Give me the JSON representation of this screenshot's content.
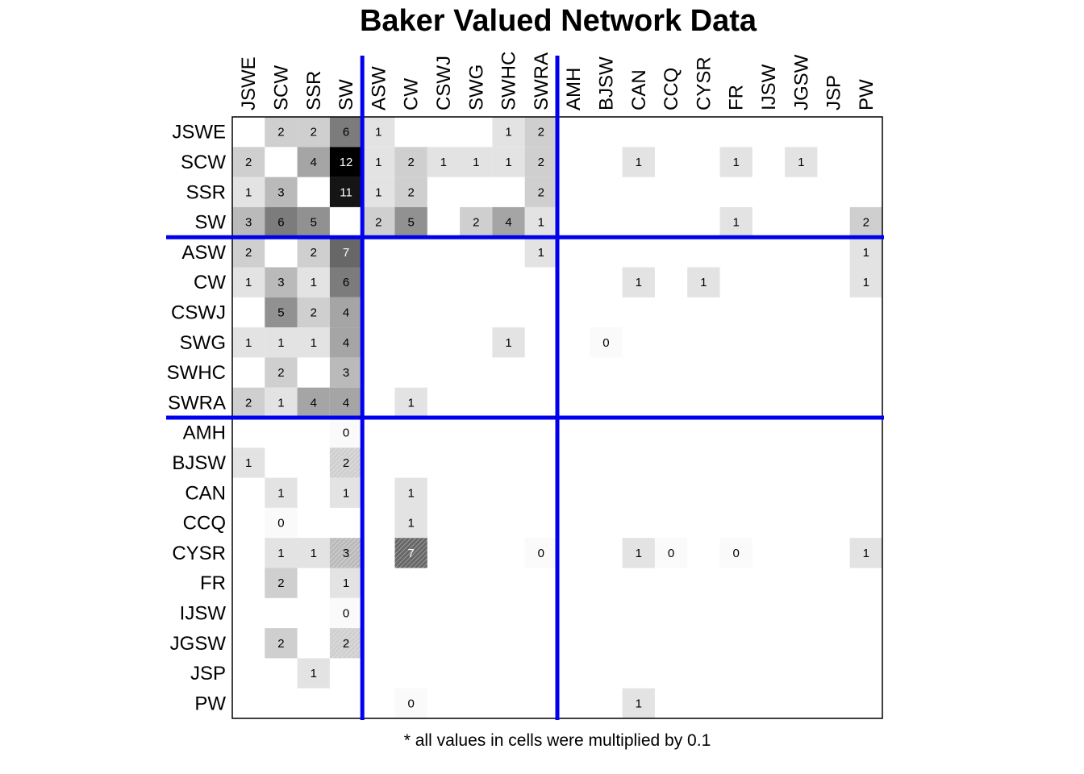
{
  "chart_data": {
    "type": "heatmap",
    "title": "Baker Valued Network Data",
    "note": "* all values in cells were multiplied by 0.1",
    "labels": [
      "JSWE",
      "SCW",
      "SSR",
      "SW",
      "ASW",
      "CW",
      "CSWJ",
      "SWG",
      "SWHC",
      "SWRA",
      "AMH",
      "BJSW",
      "CAN",
      "CCQ",
      "CYSR",
      "FR",
      "IJSW",
      "JGSW",
      "JSP",
      "PW"
    ],
    "group_boundaries_after": [
      4,
      10
    ],
    "max_value": 12,
    "cells": [
      {
        "r": 0,
        "c": 1,
        "v": 2
      },
      {
        "r": 0,
        "c": 2,
        "v": 2
      },
      {
        "r": 0,
        "c": 3,
        "v": 6
      },
      {
        "r": 0,
        "c": 4,
        "v": 1
      },
      {
        "r": 0,
        "c": 8,
        "v": 1
      },
      {
        "r": 0,
        "c": 9,
        "v": 2
      },
      {
        "r": 1,
        "c": 0,
        "v": 2
      },
      {
        "r": 1,
        "c": 2,
        "v": 4
      },
      {
        "r": 1,
        "c": 3,
        "v": 12
      },
      {
        "r": 1,
        "c": 4,
        "v": 1
      },
      {
        "r": 1,
        "c": 5,
        "v": 2
      },
      {
        "r": 1,
        "c": 6,
        "v": 1
      },
      {
        "r": 1,
        "c": 7,
        "v": 1
      },
      {
        "r": 1,
        "c": 8,
        "v": 1
      },
      {
        "r": 1,
        "c": 9,
        "v": 2
      },
      {
        "r": 1,
        "c": 12,
        "v": 1
      },
      {
        "r": 1,
        "c": 15,
        "v": 1
      },
      {
        "r": 1,
        "c": 17,
        "v": 1
      },
      {
        "r": 2,
        "c": 0,
        "v": 1
      },
      {
        "r": 2,
        "c": 1,
        "v": 3
      },
      {
        "r": 2,
        "c": 3,
        "v": 11
      },
      {
        "r": 2,
        "c": 4,
        "v": 1
      },
      {
        "r": 2,
        "c": 5,
        "v": 2
      },
      {
        "r": 2,
        "c": 9,
        "v": 2
      },
      {
        "r": 3,
        "c": 0,
        "v": 3
      },
      {
        "r": 3,
        "c": 1,
        "v": 6
      },
      {
        "r": 3,
        "c": 2,
        "v": 5
      },
      {
        "r": 3,
        "c": 4,
        "v": 2
      },
      {
        "r": 3,
        "c": 5,
        "v": 5
      },
      {
        "r": 3,
        "c": 7,
        "v": 2
      },
      {
        "r": 3,
        "c": 8,
        "v": 4
      },
      {
        "r": 3,
        "c": 9,
        "v": 1
      },
      {
        "r": 3,
        "c": 15,
        "v": 1
      },
      {
        "r": 3,
        "c": 19,
        "v": 2
      },
      {
        "r": 4,
        "c": 0,
        "v": 2
      },
      {
        "r": 4,
        "c": 2,
        "v": 2
      },
      {
        "r": 4,
        "c": 3,
        "v": 7
      },
      {
        "r": 4,
        "c": 9,
        "v": 1
      },
      {
        "r": 4,
        "c": 19,
        "v": 1
      },
      {
        "r": 5,
        "c": 0,
        "v": 1
      },
      {
        "r": 5,
        "c": 1,
        "v": 3
      },
      {
        "r": 5,
        "c": 2,
        "v": 1
      },
      {
        "r": 5,
        "c": 3,
        "v": 6
      },
      {
        "r": 5,
        "c": 12,
        "v": 1
      },
      {
        "r": 5,
        "c": 14,
        "v": 1
      },
      {
        "r": 5,
        "c": 19,
        "v": 1
      },
      {
        "r": 6,
        "c": 1,
        "v": 5
      },
      {
        "r": 6,
        "c": 2,
        "v": 2
      },
      {
        "r": 6,
        "c": 3,
        "v": 4
      },
      {
        "r": 7,
        "c": 0,
        "v": 1
      },
      {
        "r": 7,
        "c": 1,
        "v": 1
      },
      {
        "r": 7,
        "c": 2,
        "v": 1
      },
      {
        "r": 7,
        "c": 3,
        "v": 4
      },
      {
        "r": 7,
        "c": 8,
        "v": 1
      },
      {
        "r": 7,
        "c": 11,
        "v": 0
      },
      {
        "r": 8,
        "c": 1,
        "v": 2
      },
      {
        "r": 8,
        "c": 3,
        "v": 3
      },
      {
        "r": 9,
        "c": 0,
        "v": 2
      },
      {
        "r": 9,
        "c": 1,
        "v": 1
      },
      {
        "r": 9,
        "c": 2,
        "v": 4
      },
      {
        "r": 9,
        "c": 3,
        "v": 4
      },
      {
        "r": 9,
        "c": 5,
        "v": 1
      },
      {
        "r": 10,
        "c": 3,
        "v": 0
      },
      {
        "r": 11,
        "c": 0,
        "v": 1
      },
      {
        "r": 11,
        "c": 3,
        "v": 2,
        "hatched": true
      },
      {
        "r": 12,
        "c": 1,
        "v": 1
      },
      {
        "r": 12,
        "c": 3,
        "v": 1
      },
      {
        "r": 12,
        "c": 5,
        "v": 1
      },
      {
        "r": 13,
        "c": 1,
        "v": 0
      },
      {
        "r": 13,
        "c": 5,
        "v": 1
      },
      {
        "r": 14,
        "c": 1,
        "v": 1
      },
      {
        "r": 14,
        "c": 2,
        "v": 1
      },
      {
        "r": 14,
        "c": 3,
        "v": 3,
        "hatched": true
      },
      {
        "r": 14,
        "c": 5,
        "v": 7,
        "hatched": true
      },
      {
        "r": 14,
        "c": 9,
        "v": 0
      },
      {
        "r": 14,
        "c": 12,
        "v": 1
      },
      {
        "r": 14,
        "c": 13,
        "v": 0
      },
      {
        "r": 14,
        "c": 15,
        "v": 0
      },
      {
        "r": 14,
        "c": 19,
        "v": 1
      },
      {
        "r": 15,
        "c": 1,
        "v": 2
      },
      {
        "r": 15,
        "c": 3,
        "v": 1
      },
      {
        "r": 16,
        "c": 3,
        "v": 0
      },
      {
        "r": 17,
        "c": 1,
        "v": 2
      },
      {
        "r": 17,
        "c": 3,
        "v": 2,
        "hatched": true
      },
      {
        "r": 18,
        "c": 2,
        "v": 1
      },
      {
        "r": 19,
        "c": 5,
        "v": 0
      },
      {
        "r": 19,
        "c": 12,
        "v": 1
      }
    ],
    "colors": {
      "divider": "#0000ee",
      "frame": "#000000",
      "cell_dark": "#000000",
      "cell_light": "#ffffff"
    }
  }
}
